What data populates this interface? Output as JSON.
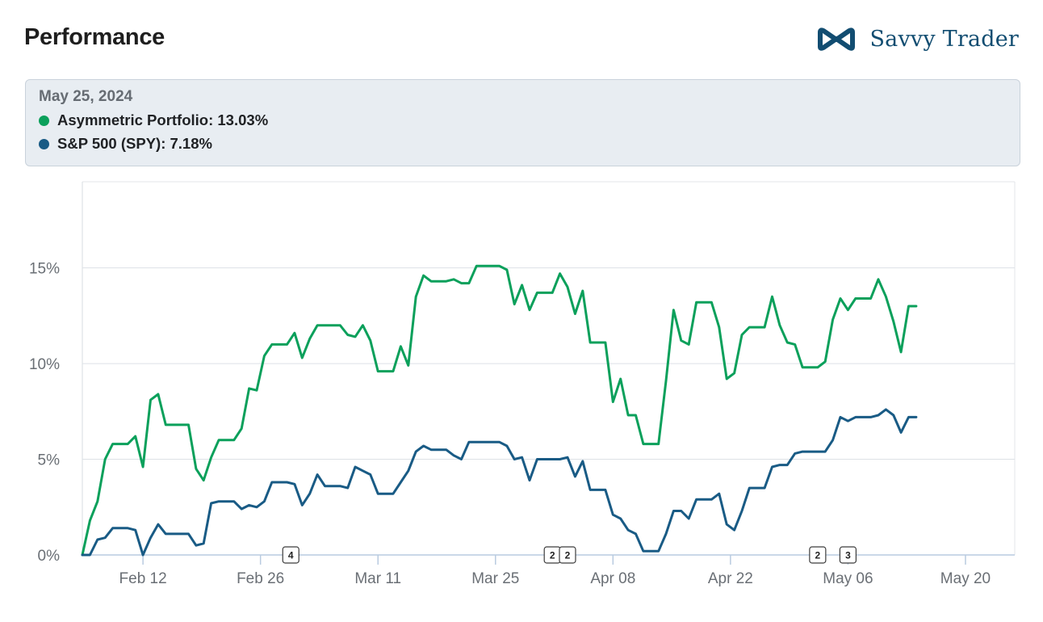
{
  "header": {
    "title": "Performance",
    "brand_name": "Savvy Trader"
  },
  "tooltip": {
    "date": "May 25, 2024",
    "rows": [
      {
        "label": "Asymmetric Portfolio: 13.03%",
        "color": "#0ba05b"
      },
      {
        "label": "S&P 500 (SPY): 7.18%",
        "color": "#195b85"
      }
    ]
  },
  "chart_data": {
    "type": "line",
    "title": "Performance",
    "xlabel": "",
    "ylabel": "",
    "ylim": [
      0,
      19.5
    ],
    "xlim": [
      0,
      123
    ],
    "grid": true,
    "y_ticks": [
      0,
      5,
      10,
      15
    ],
    "y_tick_labels": [
      "0%",
      "5%",
      "10%",
      "15%"
    ],
    "x_ticks": [
      {
        "x": 8,
        "label": "Feb 12"
      },
      {
        "x": 23.5,
        "label": "Feb 26"
      },
      {
        "x": 39,
        "label": "Mar 11"
      },
      {
        "x": 54.5,
        "label": "Mar 25"
      },
      {
        "x": 70,
        "label": "Apr 08"
      },
      {
        "x": 85.5,
        "label": "Apr 22"
      },
      {
        "x": 101,
        "label": "May 06"
      },
      {
        "x": 116.5,
        "label": "May 20"
      }
    ],
    "markers": [
      {
        "x": 27.5,
        "label": "4"
      },
      {
        "x": 62,
        "label": "2"
      },
      {
        "x": 64,
        "label": "2"
      },
      {
        "x": 97,
        "label": "2"
      },
      {
        "x": 101,
        "label": "3"
      }
    ],
    "series": [
      {
        "name": "Asymmetric Portfolio",
        "color": "#0ba05b",
        "points": [
          [
            0,
            0
          ],
          [
            1,
            1.8
          ],
          [
            2,
            2.8
          ],
          [
            3,
            5.0
          ],
          [
            4,
            5.8
          ],
          [
            5,
            5.8
          ],
          [
            6,
            5.8
          ],
          [
            7,
            6.2
          ],
          [
            8,
            4.6
          ],
          [
            9,
            8.1
          ],
          [
            10,
            8.4
          ],
          [
            11,
            6.8
          ],
          [
            12,
            6.8
          ],
          [
            13,
            6.8
          ],
          [
            14,
            6.8
          ],
          [
            15,
            4.5
          ],
          [
            16,
            3.9
          ],
          [
            17,
            5.1
          ],
          [
            18,
            6.0
          ],
          [
            19,
            6.0
          ],
          [
            20,
            6.0
          ],
          [
            21,
            6.6
          ],
          [
            22,
            8.7
          ],
          [
            23,
            8.6
          ],
          [
            24,
            10.4
          ],
          [
            25,
            11.0
          ],
          [
            26,
            11.0
          ],
          [
            27,
            11.0
          ],
          [
            28,
            11.6
          ],
          [
            29,
            10.3
          ],
          [
            30,
            11.3
          ],
          [
            31,
            12.0
          ],
          [
            32,
            12.0
          ],
          [
            33,
            12.0
          ],
          [
            34,
            12.0
          ],
          [
            35,
            11.5
          ],
          [
            36,
            11.4
          ],
          [
            37,
            12.0
          ],
          [
            38,
            11.2
          ],
          [
            39,
            9.6
          ],
          [
            40,
            9.6
          ],
          [
            41,
            9.6
          ],
          [
            42,
            10.9
          ],
          [
            43,
            9.9
          ],
          [
            44,
            13.5
          ],
          [
            45,
            14.6
          ],
          [
            46,
            14.3
          ],
          [
            47,
            14.3
          ],
          [
            48,
            14.3
          ],
          [
            49,
            14.4
          ],
          [
            50,
            14.2
          ],
          [
            51,
            14.2
          ],
          [
            52,
            15.1
          ],
          [
            53,
            15.1
          ],
          [
            54,
            15.1
          ],
          [
            55,
            15.1
          ],
          [
            56,
            14.9
          ],
          [
            57,
            13.1
          ],
          [
            58,
            14.1
          ],
          [
            59,
            12.8
          ],
          [
            60,
            13.7
          ],
          [
            61,
            13.7
          ],
          [
            62,
            13.7
          ],
          [
            63,
            14.7
          ],
          [
            64,
            14.0
          ],
          [
            65,
            12.6
          ],
          [
            66,
            13.8
          ],
          [
            67,
            11.1
          ],
          [
            68,
            11.1
          ],
          [
            69,
            11.1
          ],
          [
            70,
            8.0
          ],
          [
            71,
            9.2
          ],
          [
            72,
            7.3
          ],
          [
            73,
            7.3
          ],
          [
            74,
            5.8
          ],
          [
            75,
            5.8
          ],
          [
            76,
            5.8
          ],
          [
            77,
            9.1
          ],
          [
            78,
            12.8
          ],
          [
            79,
            11.2
          ],
          [
            80,
            11.0
          ],
          [
            81,
            13.2
          ],
          [
            82,
            13.2
          ],
          [
            83,
            13.2
          ],
          [
            84,
            11.9
          ],
          [
            85,
            9.2
          ],
          [
            86,
            9.5
          ],
          [
            87,
            11.5
          ],
          [
            88,
            11.9
          ],
          [
            89,
            11.9
          ],
          [
            90,
            11.9
          ],
          [
            91,
            13.5
          ],
          [
            92,
            12.0
          ],
          [
            93,
            11.1
          ],
          [
            94,
            11.0
          ],
          [
            95,
            9.8
          ],
          [
            96,
            9.8
          ],
          [
            97,
            9.8
          ],
          [
            98,
            10.1
          ],
          [
            99,
            12.3
          ],
          [
            100,
            13.4
          ],
          [
            101,
            12.8
          ],
          [
            102,
            13.4
          ],
          [
            103,
            13.4
          ],
          [
            104,
            13.4
          ],
          [
            105,
            14.4
          ],
          [
            106,
            13.5
          ],
          [
            107,
            12.2
          ],
          [
            108,
            10.6
          ],
          [
            109,
            13.0
          ],
          [
            110,
            13.0
          ]
        ]
      },
      {
        "name": "S&P 500 (SPY)",
        "color": "#195b85",
        "points": [
          [
            0,
            0
          ],
          [
            1,
            0
          ],
          [
            2,
            0.8
          ],
          [
            3,
            0.9
          ],
          [
            4,
            1.4
          ],
          [
            5,
            1.4
          ],
          [
            6,
            1.4
          ],
          [
            7,
            1.3
          ],
          [
            8,
            0
          ],
          [
            9,
            0.9
          ],
          [
            10,
            1.6
          ],
          [
            11,
            1.1
          ],
          [
            12,
            1.1
          ],
          [
            13,
            1.1
          ],
          [
            14,
            1.1
          ],
          [
            15,
            0.5
          ],
          [
            16,
            0.6
          ],
          [
            17,
            2.7
          ],
          [
            18,
            2.8
          ],
          [
            19,
            2.8
          ],
          [
            20,
            2.8
          ],
          [
            21,
            2.4
          ],
          [
            22,
            2.6
          ],
          [
            23,
            2.5
          ],
          [
            24,
            2.8
          ],
          [
            25,
            3.8
          ],
          [
            26,
            3.8
          ],
          [
            27,
            3.8
          ],
          [
            28,
            3.7
          ],
          [
            29,
            2.6
          ],
          [
            30,
            3.2
          ],
          [
            31,
            4.2
          ],
          [
            32,
            3.6
          ],
          [
            33,
            3.6
          ],
          [
            34,
            3.6
          ],
          [
            35,
            3.5
          ],
          [
            36,
            4.6
          ],
          [
            37,
            4.4
          ],
          [
            38,
            4.2
          ],
          [
            39,
            3.2
          ],
          [
            40,
            3.2
          ],
          [
            41,
            3.2
          ],
          [
            42,
            3.8
          ],
          [
            43,
            4.4
          ],
          [
            44,
            5.4
          ],
          [
            45,
            5.7
          ],
          [
            46,
            5.5
          ],
          [
            47,
            5.5
          ],
          [
            48,
            5.5
          ],
          [
            49,
            5.2
          ],
          [
            50,
            5.0
          ],
          [
            51,
            5.9
          ],
          [
            52,
            5.9
          ],
          [
            53,
            5.9
          ],
          [
            54,
            5.9
          ],
          [
            55,
            5.9
          ],
          [
            56,
            5.7
          ],
          [
            57,
            5.0
          ],
          [
            58,
            5.1
          ],
          [
            59,
            3.9
          ],
          [
            60,
            5.0
          ],
          [
            61,
            5.0
          ],
          [
            62,
            5.0
          ],
          [
            63,
            5.0
          ],
          [
            64,
            5.1
          ],
          [
            65,
            4.1
          ],
          [
            66,
            4.9
          ],
          [
            67,
            3.4
          ],
          [
            68,
            3.4
          ],
          [
            69,
            3.4
          ],
          [
            70,
            2.1
          ],
          [
            71,
            1.9
          ],
          [
            72,
            1.3
          ],
          [
            73,
            1.1
          ],
          [
            74,
            0.2
          ],
          [
            75,
            0.2
          ],
          [
            76,
            0.2
          ],
          [
            77,
            1.1
          ],
          [
            78,
            2.3
          ],
          [
            79,
            2.3
          ],
          [
            80,
            1.9
          ],
          [
            81,
            2.9
          ],
          [
            82,
            2.9
          ],
          [
            83,
            2.9
          ],
          [
            84,
            3.2
          ],
          [
            85,
            1.6
          ],
          [
            86,
            1.3
          ],
          [
            87,
            2.3
          ],
          [
            88,
            3.5
          ],
          [
            89,
            3.5
          ],
          [
            90,
            3.5
          ],
          [
            91,
            4.6
          ],
          [
            92,
            4.7
          ],
          [
            93,
            4.7
          ],
          [
            94,
            5.3
          ],
          [
            95,
            5.4
          ],
          [
            96,
            5.4
          ],
          [
            97,
            5.4
          ],
          [
            98,
            5.4
          ],
          [
            99,
            6.0
          ],
          [
            100,
            7.2
          ],
          [
            101,
            7.0
          ],
          [
            102,
            7.2
          ],
          [
            103,
            7.2
          ],
          [
            104,
            7.2
          ],
          [
            105,
            7.3
          ],
          [
            106,
            7.6
          ],
          [
            107,
            7.3
          ],
          [
            108,
            6.4
          ],
          [
            109,
            7.2
          ],
          [
            110,
            7.2
          ]
        ]
      }
    ]
  }
}
